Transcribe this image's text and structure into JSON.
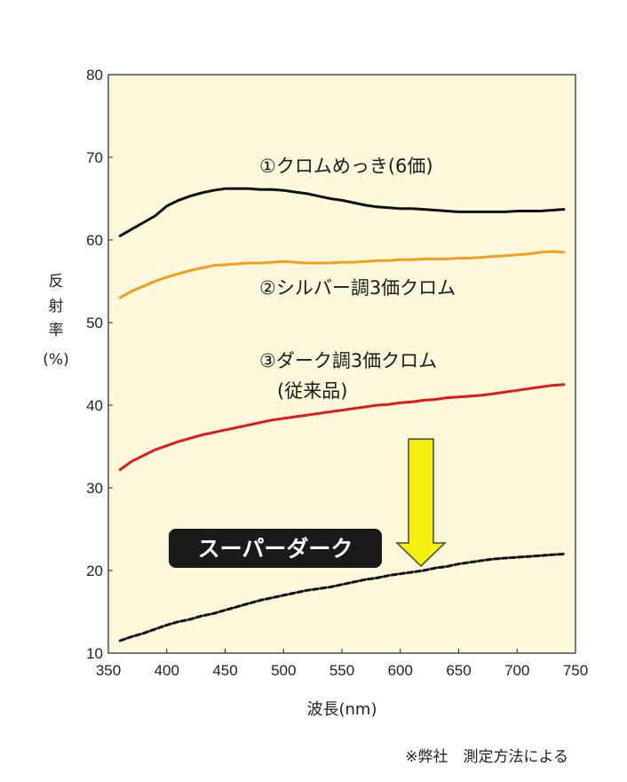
{
  "chart_data": {
    "type": "line",
    "xlabel": "波長(nm)",
    "ylabel": [
      "反",
      "射",
      "率",
      "(%)"
    ],
    "xlim": [
      350,
      750
    ],
    "ylim": [
      10,
      80
    ],
    "xticks": [
      350,
      400,
      450,
      500,
      550,
      600,
      650,
      700,
      750
    ],
    "yticks": [
      10,
      20,
      30,
      40,
      50,
      60,
      70,
      80
    ],
    "grid": false,
    "background": "#fdf8dc",
    "series": [
      {
        "name": "①クロムめっき(6価)",
        "color": "#111111",
        "dash": false,
        "x": [
          360,
          370,
          380,
          390,
          400,
          410,
          420,
          430,
          440,
          450,
          460,
          470,
          480,
          490,
          500,
          510,
          520,
          530,
          540,
          550,
          560,
          570,
          580,
          590,
          600,
          610,
          620,
          630,
          640,
          650,
          660,
          670,
          680,
          690,
          700,
          710,
          720,
          730,
          740
        ],
        "y": [
          60.5,
          61.3,
          62.1,
          62.9,
          64.1,
          64.8,
          65.3,
          65.7,
          66.0,
          66.2,
          66.2,
          66.2,
          66.1,
          66.1,
          66.0,
          65.8,
          65.6,
          65.3,
          65.0,
          64.8,
          64.5,
          64.2,
          64.0,
          63.9,
          63.8,
          63.8,
          63.7,
          63.6,
          63.5,
          63.4,
          63.4,
          63.4,
          63.4,
          63.4,
          63.5,
          63.5,
          63.5,
          63.6,
          63.7
        ]
      },
      {
        "name": "②シルバー調3価クロム",
        "color": "#f0a01e",
        "dash": false,
        "x": [
          360,
          370,
          380,
          390,
          400,
          410,
          420,
          430,
          440,
          450,
          460,
          470,
          480,
          490,
          500,
          510,
          520,
          530,
          540,
          550,
          560,
          570,
          580,
          590,
          600,
          610,
          620,
          630,
          640,
          650,
          660,
          670,
          680,
          690,
          700,
          710,
          720,
          730,
          740
        ],
        "y": [
          53.0,
          53.8,
          54.4,
          55.0,
          55.5,
          55.9,
          56.3,
          56.6,
          56.9,
          57.0,
          57.1,
          57.2,
          57.2,
          57.3,
          57.4,
          57.3,
          57.2,
          57.2,
          57.2,
          57.3,
          57.3,
          57.4,
          57.5,
          57.5,
          57.6,
          57.6,
          57.7,
          57.7,
          57.7,
          57.8,
          57.8,
          57.9,
          58.0,
          58.1,
          58.2,
          58.3,
          58.5,
          58.6,
          58.5
        ]
      },
      {
        "name": "③ダーク調3価クロム (従来品)",
        "color": "#e01a1a",
        "dash": false,
        "x": [
          360,
          370,
          380,
          390,
          400,
          410,
          420,
          430,
          440,
          450,
          460,
          470,
          480,
          490,
          500,
          510,
          520,
          530,
          540,
          550,
          560,
          570,
          580,
          590,
          600,
          610,
          620,
          630,
          640,
          650,
          660,
          670,
          680,
          690,
          700,
          710,
          720,
          730,
          740
        ],
        "y": [
          32.2,
          33.2,
          33.9,
          34.6,
          35.1,
          35.6,
          36.0,
          36.4,
          36.7,
          37.0,
          37.3,
          37.6,
          37.9,
          38.2,
          38.4,
          38.6,
          38.8,
          39.0,
          39.2,
          39.4,
          39.6,
          39.8,
          40.0,
          40.1,
          40.3,
          40.4,
          40.6,
          40.7,
          40.9,
          41.0,
          41.1,
          41.2,
          41.4,
          41.6,
          41.8,
          42.0,
          42.2,
          42.4,
          42.5
        ]
      },
      {
        "name": "スーパーダーク",
        "color": "#111111",
        "dash": true,
        "x": [
          360,
          370,
          380,
          390,
          400,
          410,
          420,
          430,
          440,
          450,
          460,
          470,
          480,
          490,
          500,
          510,
          520,
          530,
          540,
          550,
          560,
          570,
          580,
          590,
          600,
          610,
          620,
          630,
          640,
          650,
          660,
          670,
          680,
          690,
          700,
          710,
          720,
          730,
          740
        ],
        "y": [
          11.5,
          12.0,
          12.4,
          12.9,
          13.4,
          13.8,
          14.1,
          14.5,
          14.8,
          15.2,
          15.6,
          16.0,
          16.4,
          16.7,
          17.0,
          17.3,
          17.6,
          17.8,
          18.0,
          18.3,
          18.6,
          18.9,
          19.1,
          19.4,
          19.6,
          19.8,
          20.0,
          20.3,
          20.5,
          20.8,
          21.0,
          21.2,
          21.4,
          21.5,
          21.6,
          21.7,
          21.8,
          21.9,
          22.0
        ]
      }
    ],
    "annotations": {
      "line1": "①クロムめっき(6価)",
      "line2": "②シルバー調3価クロム",
      "line3a": "③ダーク調3価クロム",
      "line3b": "(従来品)",
      "super_dark_label": "スーパーダーク",
      "arrow_color": "#f5ef10"
    },
    "footnote": "※弊社　測定方法による"
  }
}
